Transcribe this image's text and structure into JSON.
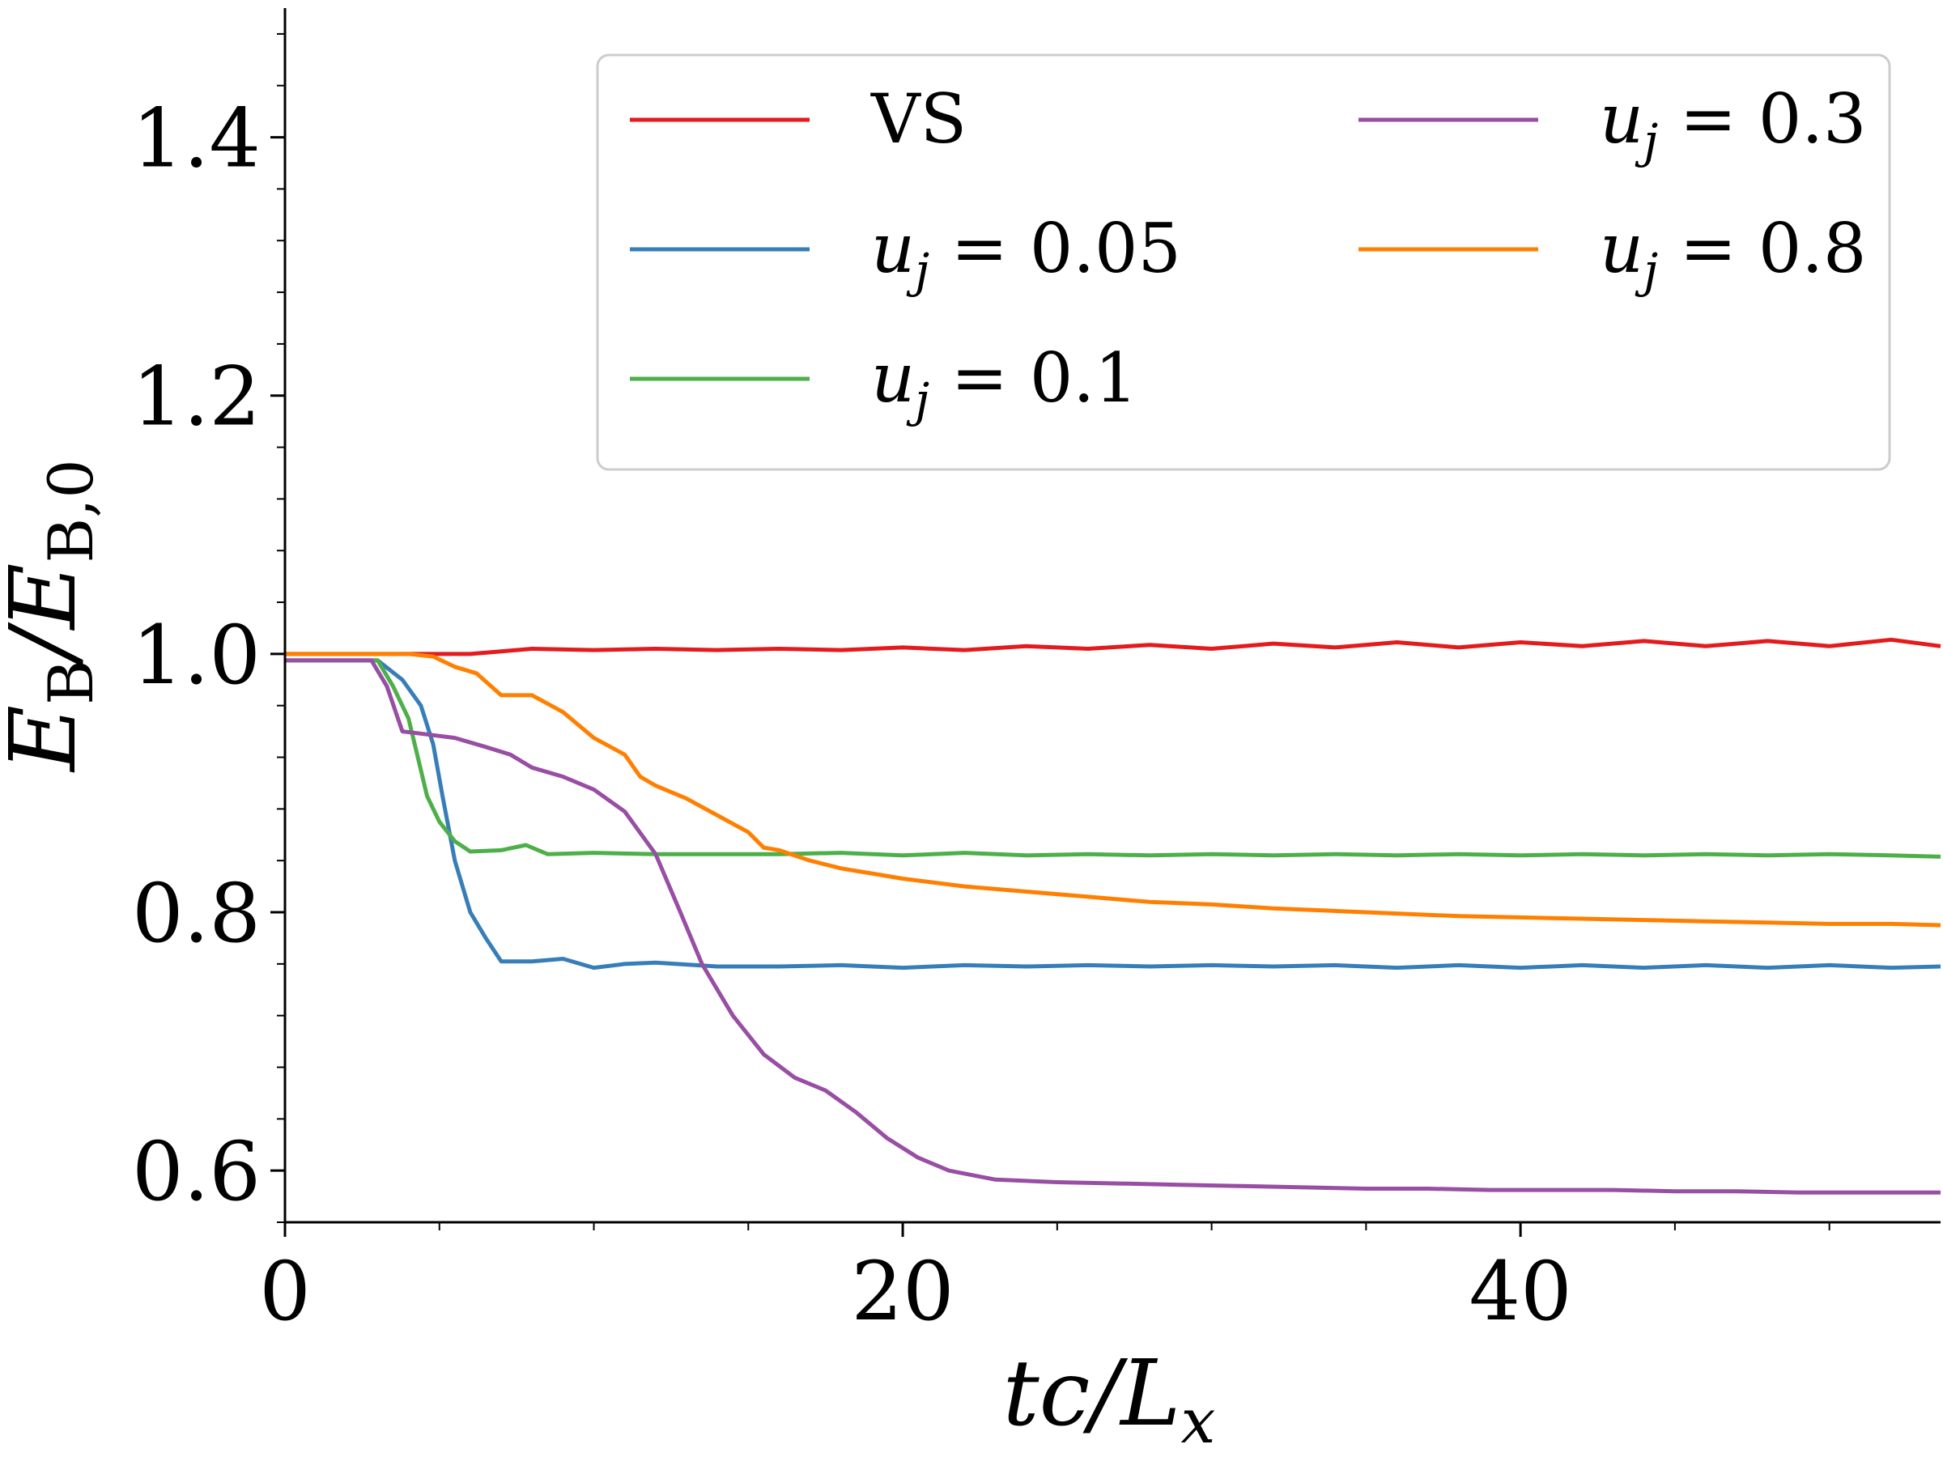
{
  "chart_data": {
    "type": "line",
    "xlabel": "tc/L_x",
    "ylabel": "E_B/E_B,0",
    "xlim": [
      0,
      53.6
    ],
    "ylim": [
      0.56,
      1.5
    ],
    "xticks": [
      0,
      20,
      40
    ],
    "xtick_labels": [
      "0",
      "20",
      "40"
    ],
    "yticks": [
      0.6,
      0.8,
      1.0,
      1.2,
      1.4
    ],
    "ytick_labels": [
      "0.6",
      "0.8",
      "1.0",
      "1.2",
      "1.4"
    ],
    "grid": false,
    "legend_position": "top-right",
    "legend_columns": 2,
    "series": [
      {
        "name": "VS",
        "color": "#e41a1c",
        "points": [
          [
            0,
            1.0
          ],
          [
            2,
            1.0
          ],
          [
            4,
            1.0
          ],
          [
            6,
            1.0
          ],
          [
            7,
            1.002
          ],
          [
            8,
            1.004
          ],
          [
            10,
            1.003
          ],
          [
            12,
            1.004
          ],
          [
            14,
            1.003
          ],
          [
            16,
            1.004
          ],
          [
            18,
            1.003
          ],
          [
            20,
            1.005
          ],
          [
            22,
            1.003
          ],
          [
            24,
            1.006
          ],
          [
            26,
            1.004
          ],
          [
            28,
            1.007
          ],
          [
            30,
            1.004
          ],
          [
            32,
            1.008
          ],
          [
            34,
            1.005
          ],
          [
            36,
            1.009
          ],
          [
            38,
            1.005
          ],
          [
            40,
            1.009
          ],
          [
            42,
            1.006
          ],
          [
            44,
            1.01
          ],
          [
            46,
            1.006
          ],
          [
            48,
            1.01
          ],
          [
            50,
            1.006
          ],
          [
            52,
            1.011
          ],
          [
            53.6,
            1.006
          ]
        ]
      },
      {
        "name": "u_j = 0.05",
        "color": "#377eb8",
        "points": [
          [
            0,
            0.995
          ],
          [
            2,
            0.995
          ],
          [
            3,
            0.995
          ],
          [
            3.8,
            0.98
          ],
          [
            4.4,
            0.96
          ],
          [
            4.8,
            0.93
          ],
          [
            5.1,
            0.89
          ],
          [
            5.5,
            0.84
          ],
          [
            6,
            0.8
          ],
          [
            6.5,
            0.78
          ],
          [
            7,
            0.762
          ],
          [
            8,
            0.762
          ],
          [
            9,
            0.764
          ],
          [
            10,
            0.757
          ],
          [
            11,
            0.76
          ],
          [
            12,
            0.761
          ],
          [
            14,
            0.758
          ],
          [
            16,
            0.758
          ],
          [
            18,
            0.759
          ],
          [
            20,
            0.757
          ],
          [
            22,
            0.759
          ],
          [
            24,
            0.758
          ],
          [
            26,
            0.759
          ],
          [
            28,
            0.758
          ],
          [
            30,
            0.759
          ],
          [
            32,
            0.758
          ],
          [
            34,
            0.759
          ],
          [
            36,
            0.757
          ],
          [
            38,
            0.759
          ],
          [
            40,
            0.757
          ],
          [
            42,
            0.759
          ],
          [
            44,
            0.757
          ],
          [
            46,
            0.759
          ],
          [
            48,
            0.757
          ],
          [
            50,
            0.759
          ],
          [
            52,
            0.757
          ],
          [
            53.6,
            0.758
          ]
        ]
      },
      {
        "name": "u_j = 0.1",
        "color": "#4daf4a",
        "points": [
          [
            0,
            0.995
          ],
          [
            2,
            0.995
          ],
          [
            3,
            0.995
          ],
          [
            3.5,
            0.975
          ],
          [
            4,
            0.95
          ],
          [
            4.3,
            0.92
          ],
          [
            4.6,
            0.89
          ],
          [
            5,
            0.87
          ],
          [
            5.5,
            0.855
          ],
          [
            6,
            0.847
          ],
          [
            7,
            0.848
          ],
          [
            7.8,
            0.852
          ],
          [
            8.5,
            0.845
          ],
          [
            10,
            0.846
          ],
          [
            12,
            0.845
          ],
          [
            14,
            0.845
          ],
          [
            16,
            0.845
          ],
          [
            18,
            0.846
          ],
          [
            20,
            0.844
          ],
          [
            22,
            0.846
          ],
          [
            24,
            0.844
          ],
          [
            26,
            0.845
          ],
          [
            28,
            0.844
          ],
          [
            30,
            0.845
          ],
          [
            32,
            0.844
          ],
          [
            34,
            0.845
          ],
          [
            36,
            0.844
          ],
          [
            38,
            0.845
          ],
          [
            40,
            0.844
          ],
          [
            42,
            0.845
          ],
          [
            44,
            0.844
          ],
          [
            46,
            0.845
          ],
          [
            48,
            0.844
          ],
          [
            50,
            0.845
          ],
          [
            52,
            0.844
          ],
          [
            53.6,
            0.843
          ]
        ]
      },
      {
        "name": "u_j = 0.3",
        "color": "#984ea3",
        "points": [
          [
            0,
            0.995
          ],
          [
            2,
            0.995
          ],
          [
            2.8,
            0.995
          ],
          [
            3.3,
            0.975
          ],
          [
            3.8,
            0.94
          ],
          [
            4.5,
            0.938
          ],
          [
            5.5,
            0.935
          ],
          [
            6.5,
            0.928
          ],
          [
            7.3,
            0.922
          ],
          [
            8,
            0.912
          ],
          [
            9,
            0.905
          ],
          [
            10,
            0.895
          ],
          [
            11,
            0.878
          ],
          [
            12,
            0.845
          ],
          [
            12.8,
            0.8
          ],
          [
            13.5,
            0.76
          ],
          [
            14.5,
            0.72
          ],
          [
            15.5,
            0.69
          ],
          [
            16.5,
            0.672
          ],
          [
            17.5,
            0.662
          ],
          [
            18.5,
            0.645
          ],
          [
            19.5,
            0.625
          ],
          [
            20.5,
            0.61
          ],
          [
            21.5,
            0.6
          ],
          [
            23,
            0.593
          ],
          [
            25,
            0.591
          ],
          [
            27,
            0.59
          ],
          [
            29,
            0.589
          ],
          [
            31,
            0.588
          ],
          [
            33,
            0.587
          ],
          [
            35,
            0.586
          ],
          [
            37,
            0.586
          ],
          [
            39,
            0.585
          ],
          [
            41,
            0.585
          ],
          [
            43,
            0.585
          ],
          [
            45,
            0.584
          ],
          [
            47,
            0.584
          ],
          [
            49,
            0.583
          ],
          [
            51,
            0.583
          ],
          [
            53.6,
            0.583
          ]
        ]
      },
      {
        "name": "u_j = 0.8",
        "color": "#ff7f00",
        "points": [
          [
            0,
            1.0
          ],
          [
            2,
            1.0
          ],
          [
            4,
            1.0
          ],
          [
            4.8,
            0.998
          ],
          [
            5.5,
            0.99
          ],
          [
            6.2,
            0.985
          ],
          [
            7,
            0.968
          ],
          [
            8,
            0.968
          ],
          [
            9,
            0.955
          ],
          [
            10,
            0.935
          ],
          [
            11,
            0.922
          ],
          [
            11.5,
            0.905
          ],
          [
            12,
            0.898
          ],
          [
            13,
            0.888
          ],
          [
            14,
            0.875
          ],
          [
            15,
            0.862
          ],
          [
            15.5,
            0.85
          ],
          [
            16,
            0.848
          ],
          [
            17,
            0.84
          ],
          [
            18,
            0.834
          ],
          [
            19,
            0.83
          ],
          [
            20,
            0.826
          ],
          [
            22,
            0.82
          ],
          [
            24,
            0.816
          ],
          [
            26,
            0.812
          ],
          [
            28,
            0.808
          ],
          [
            30,
            0.806
          ],
          [
            32,
            0.803
          ],
          [
            34,
            0.801
          ],
          [
            36,
            0.799
          ],
          [
            38,
            0.797
          ],
          [
            40,
            0.796
          ],
          [
            42,
            0.795
          ],
          [
            44,
            0.794
          ],
          [
            46,
            0.793
          ],
          [
            48,
            0.792
          ],
          [
            50,
            0.791
          ],
          [
            52,
            0.791
          ],
          [
            53.6,
            0.79
          ]
        ]
      }
    ]
  }
}
